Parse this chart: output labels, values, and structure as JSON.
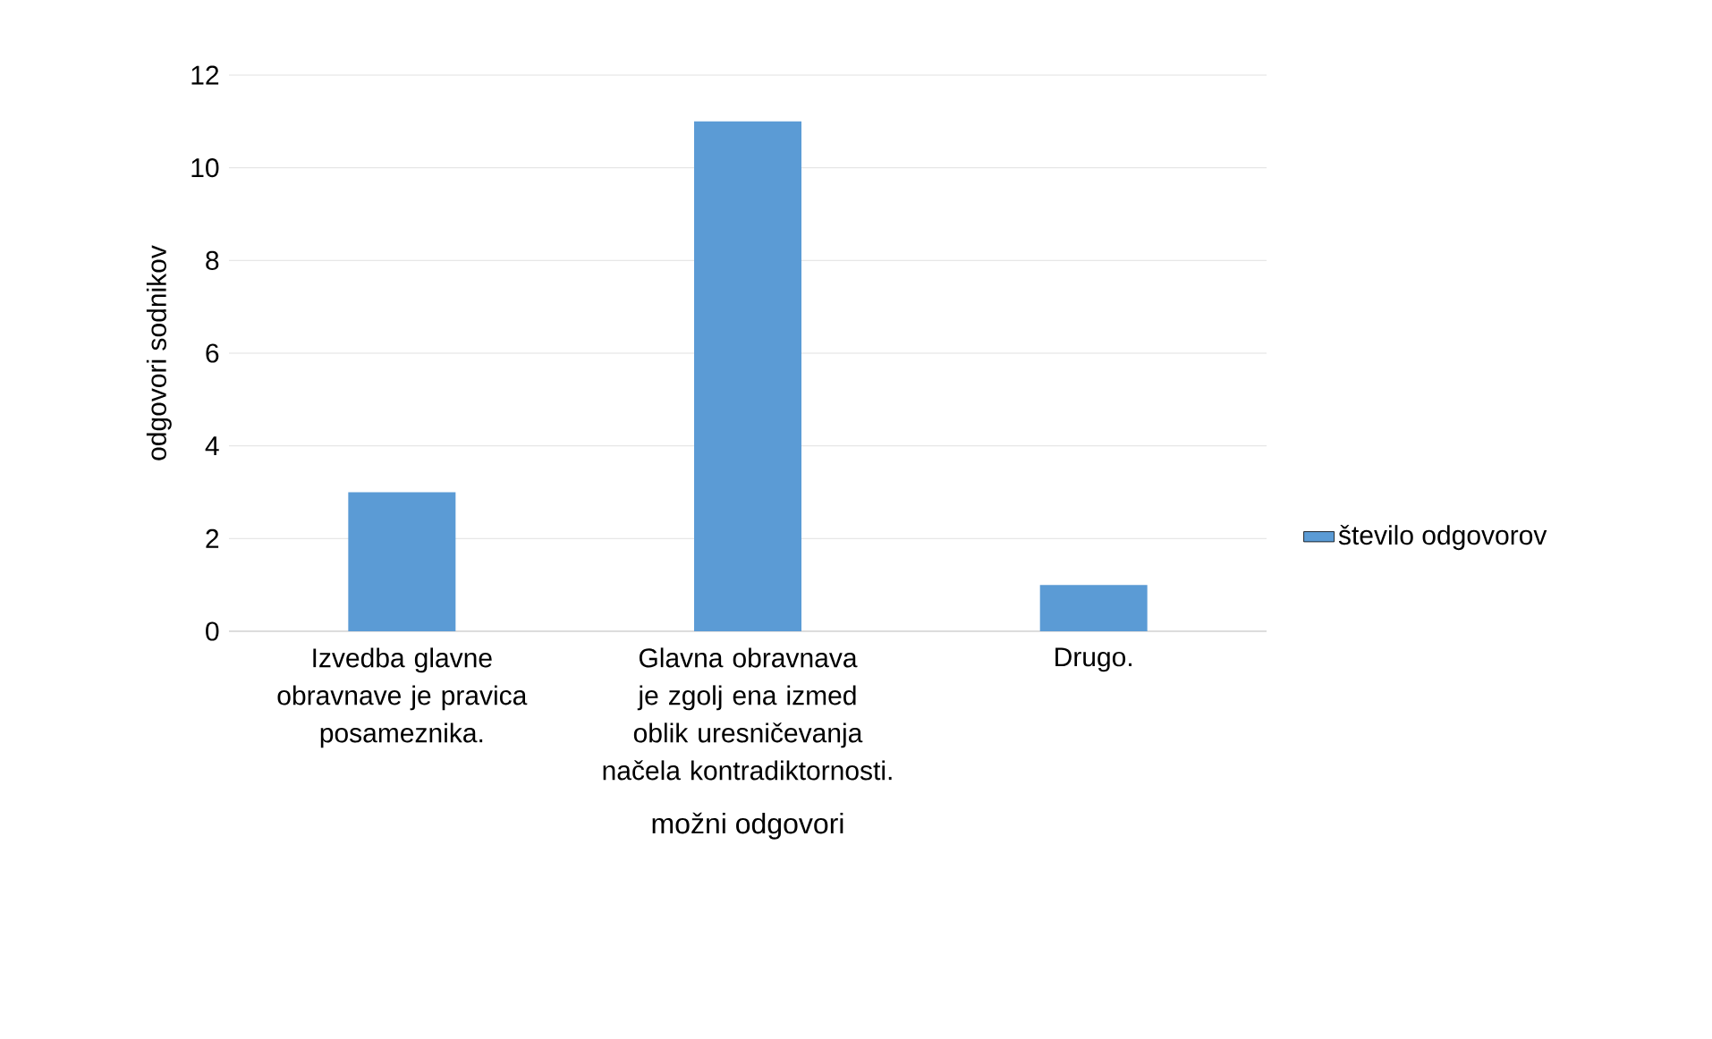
{
  "chart_data": {
    "type": "bar",
    "xlabel": "možni odgovori",
    "ylabel": "odgovori sodnikov",
    "categories": [
      "Izvedba glavne obravnave je pravica posameznika.",
      "Glavna obravnava je zgolj ena izmed oblik uresničevanja načela kontradiktornosti.",
      "Drugo."
    ],
    "series": [
      {
        "name": "število odgovorov",
        "color": "#5b9bd5",
        "values": [
          3,
          11,
          1
        ]
      }
    ],
    "ylim": [
      0,
      12
    ],
    "yticks": [
      0,
      2,
      4,
      6,
      8,
      10,
      12
    ],
    "grid": "y",
    "legend": "right"
  }
}
